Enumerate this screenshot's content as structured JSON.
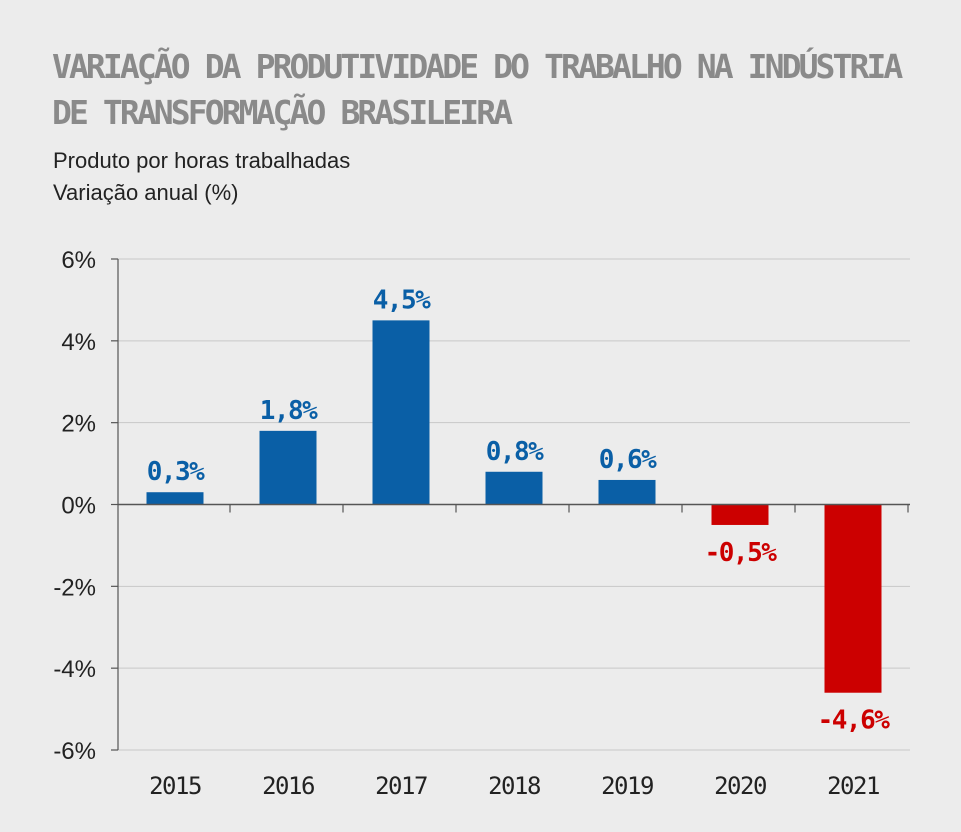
{
  "title_lines": [
    "VARIAÇÃO DA PRODUTIVIDADE DO TRABALHO NA INDÚSTRIA",
    "DE TRANSFORMAÇÃO BRASILEIRA"
  ],
  "subtitle_lines": [
    "Produto por horas trabalhadas",
    "Variação anual (%)"
  ],
  "colors": {
    "positive": "#0a5fa6",
    "negative": "#cc0000",
    "axis": "#555555",
    "grid": "#c8c8c8",
    "text": "#222222",
    "title": "#8a8a8a",
    "background": "#ececec"
  },
  "chart_data": {
    "type": "bar",
    "title": "VARIAÇÃO DA PRODUTIVIDADE DO TRABALHO NA INDÚSTRIA DE TRANSFORMAÇÃO BRASILEIRA",
    "subtitle": "Produto por horas trabalhadas / Variação anual (%)",
    "categories": [
      "2015",
      "2016",
      "2017",
      "2018",
      "2019",
      "2020",
      "2021"
    ],
    "values": [
      0.3,
      1.8,
      4.5,
      0.8,
      0.6,
      -0.5,
      -4.6
    ],
    "data_labels": [
      "0,3%",
      "1,8%",
      "4,5%",
      "0,8%",
      "0,6%",
      "-0,5%",
      "-4,6%"
    ],
    "xlabel": "",
    "ylabel": "",
    "ylim": [
      -6,
      6
    ],
    "yticks": [
      6,
      4,
      2,
      0,
      -2,
      -4,
      -6
    ],
    "ytick_labels": [
      "6%",
      "4%",
      "2%",
      "0%",
      "-2%",
      "-4%",
      "-6%"
    ],
    "grid": true,
    "legend": "none"
  }
}
